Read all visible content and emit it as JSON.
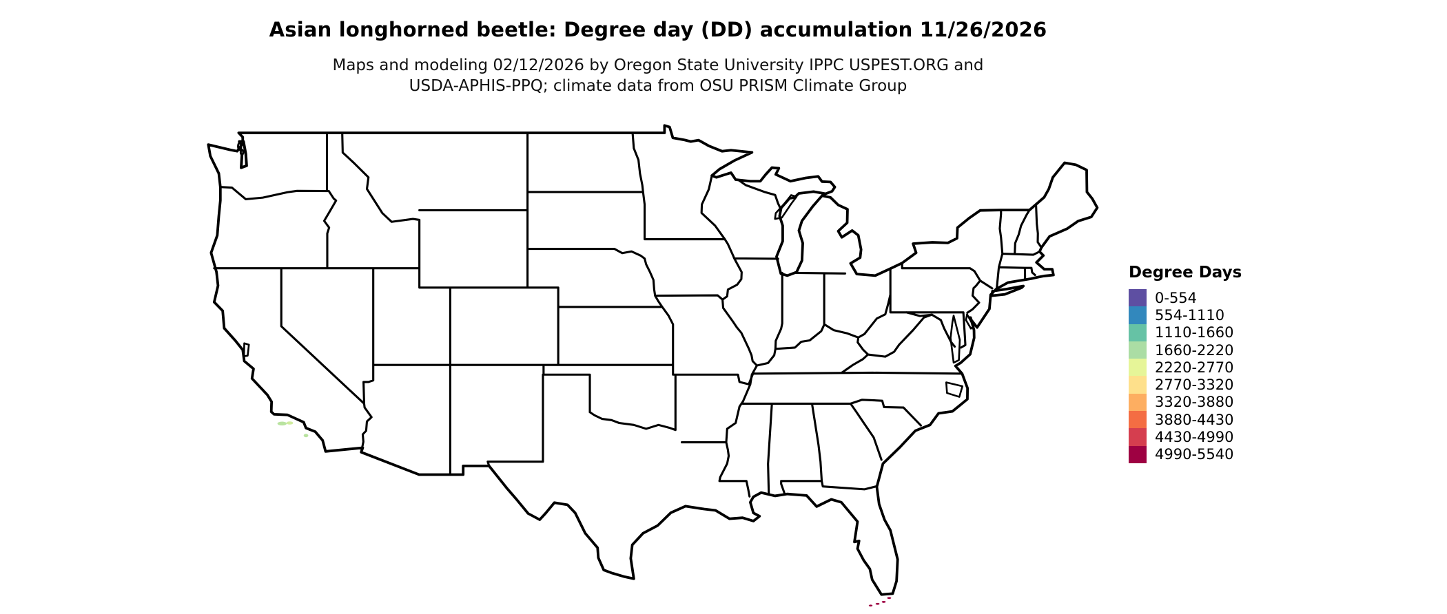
{
  "title": "Asian longhorned beetle: Degree day (DD) accumulation 11/26/2026",
  "subtitle": {
    "line1": "Maps and modeling 02/12/2026 by Oregon State University IPPC USPEST.ORG and",
    "line2": "USDA-APHIS-PPQ; climate data from OSU PRISM Climate Group"
  },
  "legend": {
    "title": "Degree Days",
    "entries": [
      {
        "label": "0-554",
        "color": "#5e4fa2"
      },
      {
        "label": "554-1110",
        "color": "#3288bd"
      },
      {
        "label": "1110-1660",
        "color": "#66c2a5"
      },
      {
        "label": "1660-2220",
        "color": "#abdda4"
      },
      {
        "label": "2220-2770",
        "color": "#e6f598"
      },
      {
        "label": "2770-3320",
        "color": "#fee08b"
      },
      {
        "label": "3320-3880",
        "color": "#fdae61"
      },
      {
        "label": "3880-4430",
        "color": "#f46d43"
      },
      {
        "label": "4430-4990",
        "color": "#d53e4f"
      },
      {
        "label": "4990-5540",
        "color": "#9e0142"
      }
    ]
  },
  "map": {
    "region": "Contiguous United States",
    "border_color": "#000000",
    "water_color": "#ffffff",
    "background_color": "#ffffff"
  }
}
